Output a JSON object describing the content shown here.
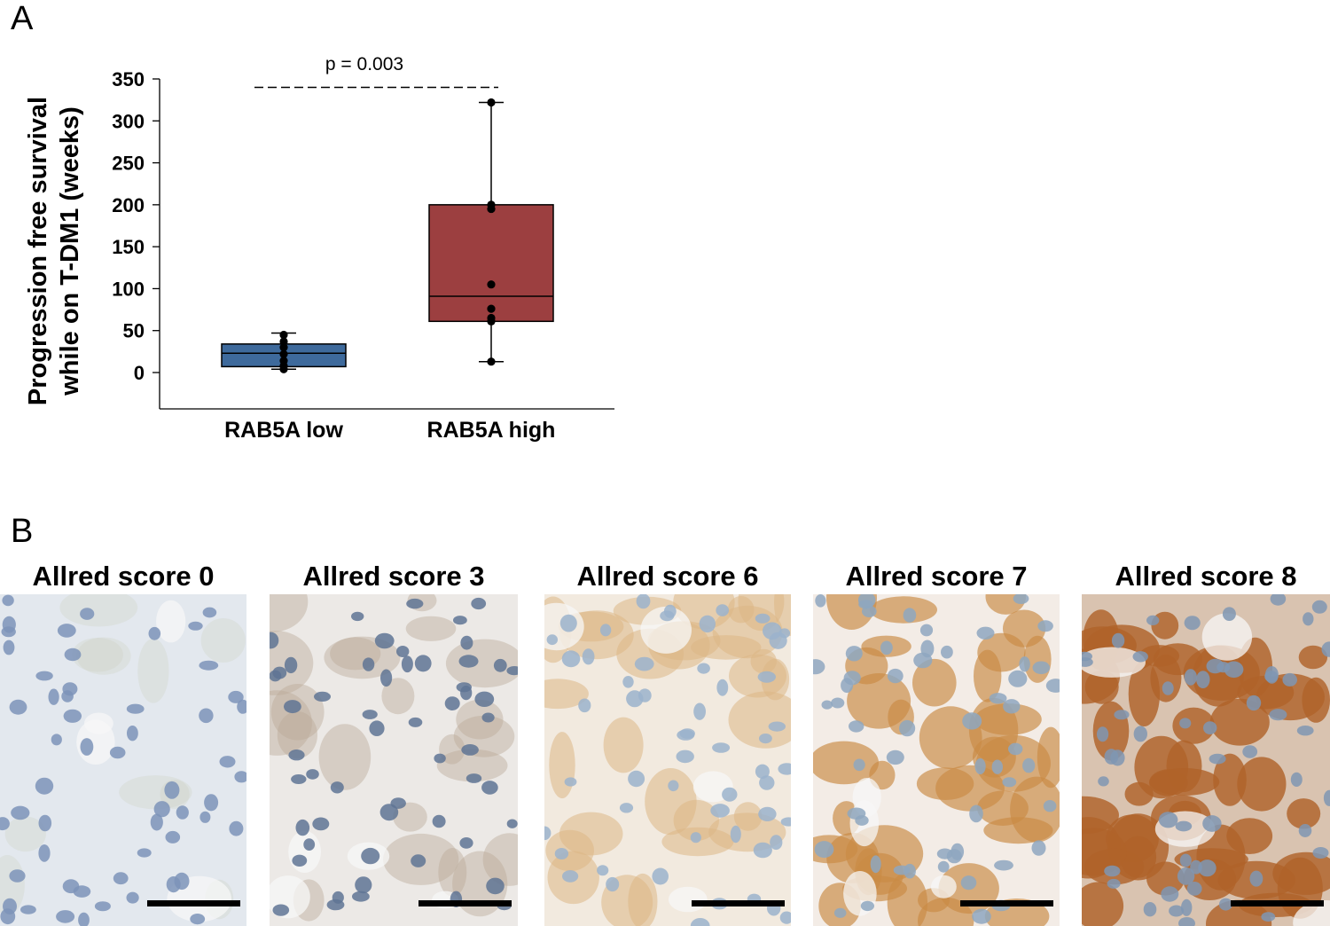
{
  "panels": {
    "a_label": "A",
    "b_label": "B"
  },
  "chart_data": {
    "type": "box",
    "title": "",
    "ylabel": "Progression free survival while on T-DM1 (weeks)",
    "ylabel_lines": [
      "Progression free survival",
      "while on T-DM1 (weeks)"
    ],
    "xlabel": "",
    "ylim": [
      -45,
      350
    ],
    "yticks": [
      0,
      50,
      100,
      150,
      200,
      250,
      300,
      350
    ],
    "grid": false,
    "categories": [
      "RAB5A low",
      "RAB5A high"
    ],
    "boxes": [
      {
        "category": "RAB5A low",
        "color": "#3E6A9C",
        "q1": 7,
        "median": 23,
        "q3": 34,
        "whisker_low": 4,
        "whisker_high": 47,
        "points": [
          4,
          8,
          14,
          22,
          30,
          37,
          45
        ]
      },
      {
        "category": "RAB5A high",
        "color": "#9C3F40",
        "q1": 61,
        "median": 91,
        "q3": 200,
        "whisker_low": 13,
        "whisker_high": 322,
        "points": [
          13,
          61,
          65,
          76,
          105,
          195,
          200,
          322
        ]
      }
    ],
    "annotation": {
      "text": "p = 0.003",
      "y": 340
    }
  },
  "micrographs": [
    {
      "title": "Allred score 0",
      "bg": "#e3e8ee",
      "stain": "#c9ccb8",
      "nucleus": "#7d93b9",
      "density": 0.0
    },
    {
      "title": "Allred score 3",
      "bg": "#ece9e6",
      "stain": "#b9aa96",
      "nucleus": "#5f7494",
      "density": 0.3
    },
    {
      "title": "Allred score 6",
      "bg": "#f2eadf",
      "stain": "#dcb685",
      "nucleus": "#9bb3cc",
      "density": 0.5
    },
    {
      "title": "Allred score 7",
      "bg": "#f3ece6",
      "stain": "#c98a45",
      "nucleus": "#8ea7bf",
      "density": 0.7
    },
    {
      "title": "Allred score 8",
      "bg": "#d9c3b0",
      "stain": "#b0632a",
      "nucleus": "#7f97b3",
      "density": 0.95
    }
  ]
}
